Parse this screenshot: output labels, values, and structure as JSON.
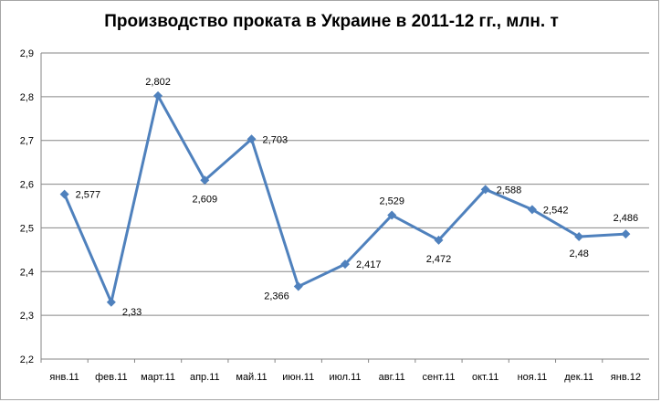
{
  "chart_data": {
    "type": "line",
    "title": "Производство проката в Украине в 2011-12 гг., млн. т",
    "categories": [
      "янв.11",
      "фев.11",
      "март.11",
      "апр.11",
      "май.11",
      "июн.11",
      "июл.11",
      "авг.11",
      "сент.11",
      "окт.11",
      "ноя.11",
      "дек.11",
      "янв.12"
    ],
    "series": [
      {
        "values": [
          2.577,
          2.33,
          2.802,
          2.609,
          2.703,
          2.366,
          2.417,
          2.529,
          2.472,
          2.588,
          2.542,
          2.48,
          2.486
        ],
        "labels": [
          "2,577",
          "2,33",
          "2,802",
          "2,609",
          "2,703",
          "2,366",
          "2,417",
          "2,529",
          "2,472",
          "2,588",
          "2,542",
          "2,48",
          "2,486"
        ],
        "color": "#4f81bd"
      }
    ],
    "y_ticks": [
      "2,2",
      "2,3",
      "2,4",
      "2,5",
      "2,6",
      "2,7",
      "2,8",
      "2,9"
    ],
    "ylim": [
      2.2,
      2.9
    ],
    "grid": true,
    "legend": "none"
  }
}
